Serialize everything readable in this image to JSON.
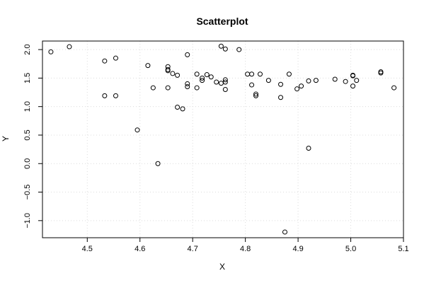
{
  "chart_data": {
    "type": "scatter",
    "title": "Scatterplot",
    "xlabel": "X",
    "ylabel": "Y",
    "xlim": [
      4.415,
      5.1
    ],
    "ylim": [
      -1.3,
      2.15
    ],
    "xticks": [
      "4.5",
      "4.6",
      "4.7",
      "4.8",
      "4.9",
      "5.0",
      "5.1"
    ],
    "yticks": [
      "−1.0",
      "−0.5",
      "0.0",
      "0.5",
      "1.0",
      "1.5",
      "2.0"
    ],
    "xtick_values": [
      4.5,
      4.6,
      4.7,
      4.8,
      4.9,
      5.0,
      5.1
    ],
    "ytick_values": [
      -1.0,
      -0.5,
      0.0,
      0.5,
      1.0,
      1.5,
      2.0
    ],
    "grid": true,
    "marker": "open-circle",
    "points": [
      [
        4.431,
        1.96
      ],
      [
        4.466,
        2.05
      ],
      [
        4.533,
        1.8
      ],
      [
        4.533,
        1.19
      ],
      [
        4.554,
        1.85
      ],
      [
        4.554,
        1.19
      ],
      [
        4.595,
        0.59
      ],
      [
        4.615,
        1.72
      ],
      [
        4.625,
        1.33
      ],
      [
        4.634,
        0.0
      ],
      [
        4.653,
        1.7
      ],
      [
        4.653,
        1.65
      ],
      [
        4.653,
        1.63
      ],
      [
        4.653,
        1.33
      ],
      [
        4.662,
        1.58
      ],
      [
        4.671,
        1.55
      ],
      [
        4.671,
        0.99
      ],
      [
        4.681,
        0.96
      ],
      [
        4.69,
        1.91
      ],
      [
        4.69,
        1.4
      ],
      [
        4.69,
        1.35
      ],
      [
        4.708,
        1.57
      ],
      [
        4.708,
        1.33
      ],
      [
        4.718,
        1.5
      ],
      [
        4.718,
        1.46
      ],
      [
        4.727,
        1.56
      ],
      [
        4.735,
        1.52
      ],
      [
        4.745,
        1.43
      ],
      [
        4.754,
        2.06
      ],
      [
        4.754,
        1.41
      ],
      [
        4.762,
        2.01
      ],
      [
        4.762,
        1.47
      ],
      [
        4.762,
        1.43
      ],
      [
        4.762,
        1.3
      ],
      [
        4.788,
        2.0
      ],
      [
        4.804,
        1.57
      ],
      [
        4.812,
        1.57
      ],
      [
        4.812,
        1.38
      ],
      [
        4.82,
        1.22
      ],
      [
        4.82,
        1.19
      ],
      [
        4.828,
        1.57
      ],
      [
        4.844,
        1.46
      ],
      [
        4.867,
        1.39
      ],
      [
        4.867,
        1.16
      ],
      [
        4.875,
        -1.2
      ],
      [
        4.883,
        1.57
      ],
      [
        4.898,
        1.31
      ],
      [
        4.906,
        1.36
      ],
      [
        4.92,
        1.45
      ],
      [
        4.92,
        0.27
      ],
      [
        4.934,
        1.46
      ],
      [
        4.97,
        1.48
      ],
      [
        4.99,
        1.44
      ],
      [
        5.004,
        1.55
      ],
      [
        5.004,
        1.54
      ],
      [
        5.004,
        1.36
      ],
      [
        5.011,
        1.46
      ],
      [
        5.057,
        1.61
      ],
      [
        5.057,
        1.59
      ],
      [
        5.082,
        1.33
      ]
    ]
  }
}
